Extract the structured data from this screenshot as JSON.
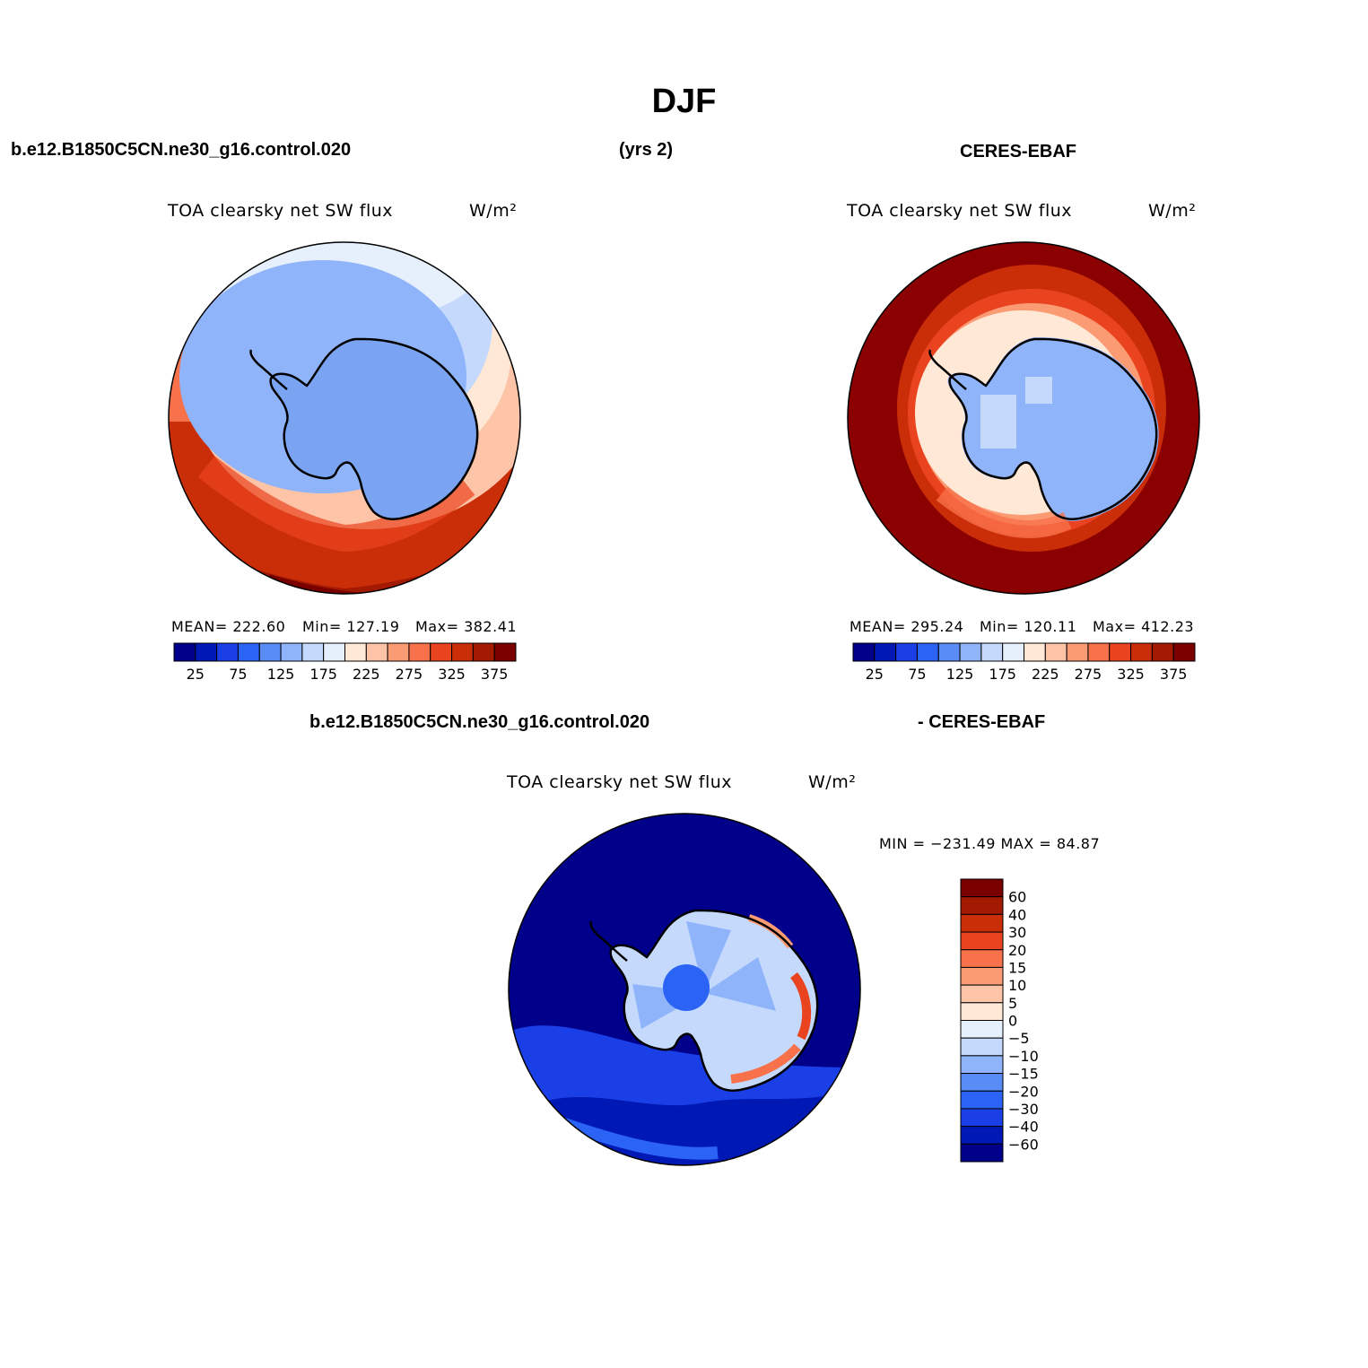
{
  "page_title": "DJF",
  "header": {
    "case_name": "b.e12.B1850C5CN.ne30_g16.control.020",
    "years": "(yrs 2)",
    "obs_name": "CERES-EBAF"
  },
  "diff_header": {
    "case_name": "b.e12.B1850C5CN.ne30_g16.control.020",
    "obs_name": "- CERES-EBAF"
  },
  "panels": {
    "model": {
      "var_label": "TOA clearsky net SW flux",
      "units": "W/m²",
      "stats": {
        "mean": "MEAN= 222.60",
        "min": "Min= 127.19",
        "max": "Max= 382.41"
      }
    },
    "obs": {
      "var_label": "TOA clearsky net SW flux",
      "units": "W/m²",
      "stats": {
        "mean": "MEAN= 295.24",
        "min": "Min= 120.11",
        "max": "Max= 412.23"
      }
    },
    "diff": {
      "var_label": "TOA clearsky net SW flux",
      "units": "W/m²",
      "stats": "MIN = −231.49 MAX =  84.87"
    }
  },
  "abs_colorbar": {
    "colors": [
      "#00008b",
      "#0019b4",
      "#1a3fe6",
      "#2b63f5",
      "#5a8cf5",
      "#90b4fa",
      "#c4d9fc",
      "#e6f0fd",
      "#ffe8d6",
      "#fdc4a8",
      "#fb9b74",
      "#f7714a",
      "#e9441f",
      "#ca2e08",
      "#a31a02",
      "#7a0000"
    ],
    "tick_labels": [
      "25",
      "75",
      "125",
      "175",
      "225",
      "275",
      "325",
      "375"
    ]
  },
  "diff_colorbar": {
    "colors_top_to_bottom": [
      "#7a0000",
      "#a31a02",
      "#ca2e08",
      "#e9441f",
      "#f7714a",
      "#fb9b74",
      "#fdc4a8",
      "#ffe8d6",
      "#e6f0fd",
      "#c4d9fc",
      "#90b4fa",
      "#5a8cf5",
      "#2b63f5",
      "#1a3fe6",
      "#0019b4",
      "#00008b"
    ],
    "tick_labels": [
      "60",
      "40",
      "30",
      "20",
      "15",
      "10",
      "5",
      "0",
      "−5",
      "−10",
      "−15",
      "−20",
      "−30",
      "−40",
      "−60"
    ]
  },
  "colors": {
    "ice_blue": "#7aa3f2",
    "ocean_dark_red": "#8b0000",
    "diff_ocean": "#00008b",
    "coastline": "#000000"
  }
}
